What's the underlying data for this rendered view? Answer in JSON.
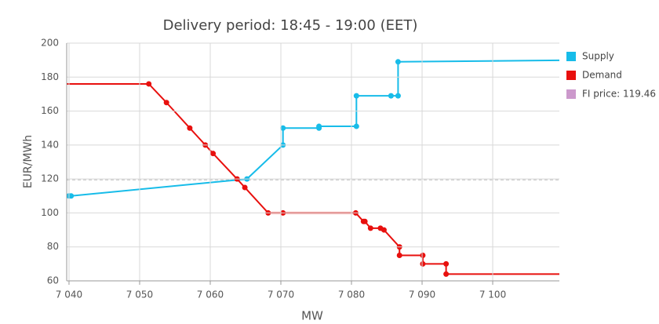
{
  "chart_data": {
    "type": "line",
    "title": "Delivery period: 18:45 - 19:00 (EET)",
    "xlabel": "MW",
    "ylabel": "EUR/MWh",
    "xlim": [
      7039.67,
      7109.44
    ],
    "ylim": [
      60,
      200
    ],
    "xticks": [
      {
        "value": 7040,
        "label": "7 040"
      },
      {
        "value": 7050,
        "label": "7 050"
      },
      {
        "value": 7060,
        "label": "7 060"
      },
      {
        "value": 7070,
        "label": "7 070"
      },
      {
        "value": 7080,
        "label": "7 080"
      },
      {
        "value": 7090,
        "label": "7 090"
      },
      {
        "value": 7100,
        "label": "7 100"
      }
    ],
    "yticks": [
      60,
      80,
      100,
      120,
      140,
      160,
      180,
      200
    ],
    "grid": true,
    "series": [
      {
        "name": "Supply",
        "color": "#17bce9",
        "x": [
          7040,
          7040.3,
          7065.2,
          7070.3,
          7070.3,
          7075.4,
          7075.4,
          7080.7,
          7080.7,
          7085.6,
          7086.6,
          7086.6,
          7112
        ],
        "values": [
          110,
          110,
          120,
          140,
          150,
          150,
          151,
          151,
          169,
          169,
          169,
          189,
          190
        ]
      },
      {
        "name": "Demand",
        "color": "#e8100e",
        "x": [
          7039,
          7051.3,
          7053.8,
          7057.1,
          7059.3,
          7060.4,
          7063.8,
          7064.9,
          7068.2,
          7070.3,
          7080.6,
          7081.7,
          7081.9,
          7082.7,
          7084.1,
          7084.6,
          7086.8,
          7086.8,
          7090.1,
          7090.1,
          7093.4,
          7093.4,
          7112
        ],
        "values": [
          176,
          176,
          165,
          150,
          140,
          135,
          120,
          115,
          100,
          100,
          100,
          95,
          95,
          91,
          91,
          90,
          80,
          75,
          75,
          70,
          70,
          64,
          64
        ]
      }
    ],
    "fi_price": {
      "label": "FI price: 119.46",
      "value": 119.46,
      "color": "#cc99cc"
    }
  }
}
